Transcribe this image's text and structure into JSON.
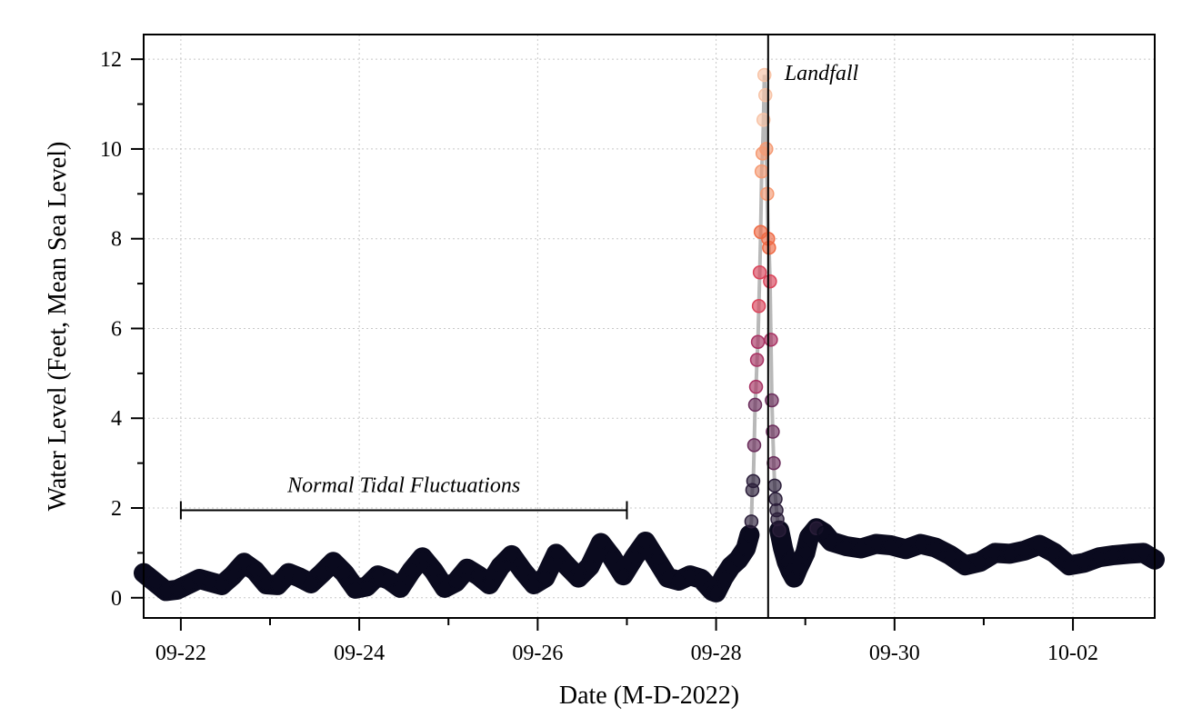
{
  "chart_data": {
    "type": "scatter",
    "title": "",
    "xlabel": "Date (M-D-2022)",
    "ylabel": "Water Level (Feet, Mean Sea Level)",
    "xlim": [
      "2022-09-21T14:00",
      "2022-10-02T22:00"
    ],
    "ylim": [
      -0.45,
      12.55
    ],
    "yticks": [
      0,
      2,
      4,
      6,
      8,
      10,
      12
    ],
    "xticks": [
      {
        "date": "2022-09-22",
        "label": "09-22"
      },
      {
        "date": "2022-09-24",
        "label": "09-24"
      },
      {
        "date": "2022-09-26",
        "label": "09-26"
      },
      {
        "date": "2022-09-28",
        "label": "09-28"
      },
      {
        "date": "2022-09-30",
        "label": "09-30"
      },
      {
        "date": "2022-10-02",
        "label": "10-02"
      }
    ],
    "grid": true,
    "colors": {
      "low_points": "#0a0a1e",
      "connector_line": "#b8b8b8",
      "landfall_line": "#000000",
      "surge_colormap": [
        "#2b1e3a",
        "#6b2e5c",
        "#a83263",
        "#d9445a",
        "#ee6a45",
        "#f59a73",
        "#f8c3a6"
      ]
    },
    "landfall": {
      "date": "2022-09-28T14:00",
      "label": "Landfall"
    },
    "normal_tides": {
      "start": "2022-09-22T00:00",
      "end": "2022-09-27T00:00",
      "y": 1.95,
      "label": "Normal Tidal Fluctuations"
    },
    "series": [
      {
        "values": [
          [
            "2022-09-21T14:00",
            0.55
          ],
          [
            "2022-09-21T17:00",
            0.35
          ],
          [
            "2022-09-21T20:00",
            0.15
          ],
          [
            "2022-09-21T23:00",
            0.18
          ],
          [
            "2022-09-22T02:00",
            0.3
          ],
          [
            "2022-09-22T05:00",
            0.42
          ],
          [
            "2022-09-22T08:00",
            0.35
          ],
          [
            "2022-09-22T11:00",
            0.28
          ],
          [
            "2022-09-22T14:00",
            0.5
          ],
          [
            "2022-09-22T17:00",
            0.78
          ],
          [
            "2022-09-22T20:00",
            0.6
          ],
          [
            "2022-09-22T23:00",
            0.3
          ],
          [
            "2022-09-23T02:00",
            0.28
          ],
          [
            "2022-09-23T05:00",
            0.55
          ],
          [
            "2022-09-23T08:00",
            0.45
          ],
          [
            "2022-09-23T11:00",
            0.32
          ],
          [
            "2022-09-23T14:00",
            0.55
          ],
          [
            "2022-09-23T17:00",
            0.8
          ],
          [
            "2022-09-23T20:00",
            0.55
          ],
          [
            "2022-09-23T23:00",
            0.2
          ],
          [
            "2022-09-24T02:00",
            0.25
          ],
          [
            "2022-09-24T05:00",
            0.5
          ],
          [
            "2022-09-24T08:00",
            0.4
          ],
          [
            "2022-09-24T11:00",
            0.22
          ],
          [
            "2022-09-24T14:00",
            0.6
          ],
          [
            "2022-09-24T17:00",
            0.9
          ],
          [
            "2022-09-24T20:00",
            0.6
          ],
          [
            "2022-09-24T23:00",
            0.22
          ],
          [
            "2022-09-25T02:00",
            0.35
          ],
          [
            "2022-09-25T05:00",
            0.65
          ],
          [
            "2022-09-25T08:00",
            0.5
          ],
          [
            "2022-09-25T11:00",
            0.3
          ],
          [
            "2022-09-25T14:00",
            0.7
          ],
          [
            "2022-09-25T17:00",
            0.95
          ],
          [
            "2022-09-25T20:00",
            0.6
          ],
          [
            "2022-09-25T23:00",
            0.3
          ],
          [
            "2022-09-26T02:00",
            0.45
          ],
          [
            "2022-09-26T05:00",
            0.98
          ],
          [
            "2022-09-26T08:00",
            0.7
          ],
          [
            "2022-09-26T11:00",
            0.45
          ],
          [
            "2022-09-26T14:00",
            0.7
          ],
          [
            "2022-09-26T17:00",
            1.22
          ],
          [
            "2022-09-26T20:00",
            0.9
          ],
          [
            "2022-09-26T23:00",
            0.5
          ],
          [
            "2022-09-27T02:00",
            0.9
          ],
          [
            "2022-09-27T05:00",
            1.25
          ],
          [
            "2022-09-27T08:00",
            0.85
          ],
          [
            "2022-09-27T11:00",
            0.45
          ],
          [
            "2022-09-27T14:00",
            0.38
          ],
          [
            "2022-09-27T17:00",
            0.5
          ],
          [
            "2022-09-27T20:00",
            0.42
          ],
          [
            "2022-09-27T23:00",
            0.15
          ],
          [
            "2022-09-28T00:00",
            0.12
          ],
          [
            "2022-09-28T02:00",
            0.45
          ],
          [
            "2022-09-28T04:00",
            0.7
          ],
          [
            "2022-09-28T06:00",
            0.85
          ],
          [
            "2022-09-28T08:00",
            1.1
          ],
          [
            "2022-09-28T09:00",
            1.4
          ]
        ]
      },
      {
        "values": [
          [
            "2022-09-28T09:30",
            1.7
          ],
          [
            "2022-09-28T09:45",
            2.4
          ],
          [
            "2022-09-28T10:00",
            2.6
          ],
          [
            "2022-09-28T10:15",
            3.4
          ],
          [
            "2022-09-28T10:30",
            4.3
          ],
          [
            "2022-09-28T10:45",
            4.7
          ],
          [
            "2022-09-28T11:00",
            5.3
          ],
          [
            "2022-09-28T11:15",
            5.7
          ],
          [
            "2022-09-28T11:30",
            6.5
          ],
          [
            "2022-09-28T11:45",
            7.25
          ],
          [
            "2022-09-28T12:00",
            8.15
          ],
          [
            "2022-09-28T12:15",
            9.5
          ],
          [
            "2022-09-28T12:30",
            9.9
          ],
          [
            "2022-09-28T12:45",
            10.65
          ],
          [
            "2022-09-28T13:00",
            11.65
          ],
          [
            "2022-09-28T13:15",
            11.2
          ],
          [
            "2022-09-28T13:30",
            10.0
          ],
          [
            "2022-09-28T13:45",
            9.0
          ],
          [
            "2022-09-28T14:00",
            8.0
          ],
          [
            "2022-09-28T14:15",
            7.8
          ],
          [
            "2022-09-28T14:30",
            7.05
          ],
          [
            "2022-09-28T14:45",
            5.75
          ],
          [
            "2022-09-28T15:00",
            4.4
          ],
          [
            "2022-09-28T15:15",
            3.7
          ],
          [
            "2022-09-28T15:30",
            3.0
          ],
          [
            "2022-09-28T15:45",
            2.5
          ],
          [
            "2022-09-28T16:00",
            2.2
          ],
          [
            "2022-09-28T16:15",
            1.95
          ],
          [
            "2022-09-28T16:30",
            1.75
          ]
        ]
      },
      {
        "values": [
          [
            "2022-09-28T17:00",
            1.5
          ],
          [
            "2022-09-28T18:00",
            1.1
          ],
          [
            "2022-09-28T19:00",
            0.8
          ],
          [
            "2022-09-28T20:00",
            0.6
          ],
          [
            "2022-09-28T21:00",
            0.45
          ],
          [
            "2022-09-28T22:00",
            0.65
          ],
          [
            "2022-09-29T00:00",
            1.0
          ],
          [
            "2022-09-29T01:00",
            1.35
          ],
          [
            "2022-09-29T03:00",
            1.55
          ],
          [
            "2022-09-29T05:00",
            1.45
          ],
          [
            "2022-09-29T07:00",
            1.25
          ],
          [
            "2022-09-29T11:00",
            1.15
          ],
          [
            "2022-09-29T15:00",
            1.1
          ],
          [
            "2022-09-29T19:00",
            1.2
          ],
          [
            "2022-09-29T23:00",
            1.17
          ],
          [
            "2022-09-30T03:00",
            1.08
          ],
          [
            "2022-09-30T07:00",
            1.2
          ],
          [
            "2022-09-30T11:00",
            1.12
          ],
          [
            "2022-09-30T15:00",
            0.95
          ],
          [
            "2022-09-30T19:00",
            0.72
          ],
          [
            "2022-09-30T23:00",
            0.8
          ],
          [
            "2022-10-01T03:00",
            1.0
          ],
          [
            "2022-10-01T07:00",
            0.98
          ],
          [
            "2022-10-01T11:00",
            1.05
          ],
          [
            "2022-10-01T15:00",
            1.18
          ],
          [
            "2022-10-01T19:00",
            1.0
          ],
          [
            "2022-10-01T23:00",
            0.72
          ],
          [
            "2022-10-02T03:00",
            0.78
          ],
          [
            "2022-10-02T07:00",
            0.9
          ],
          [
            "2022-10-02T11:00",
            0.95
          ],
          [
            "2022-10-02T15:00",
            0.98
          ],
          [
            "2022-10-02T19:00",
            1.0
          ],
          [
            "2022-10-02T22:00",
            0.85
          ]
        ]
      }
    ]
  }
}
